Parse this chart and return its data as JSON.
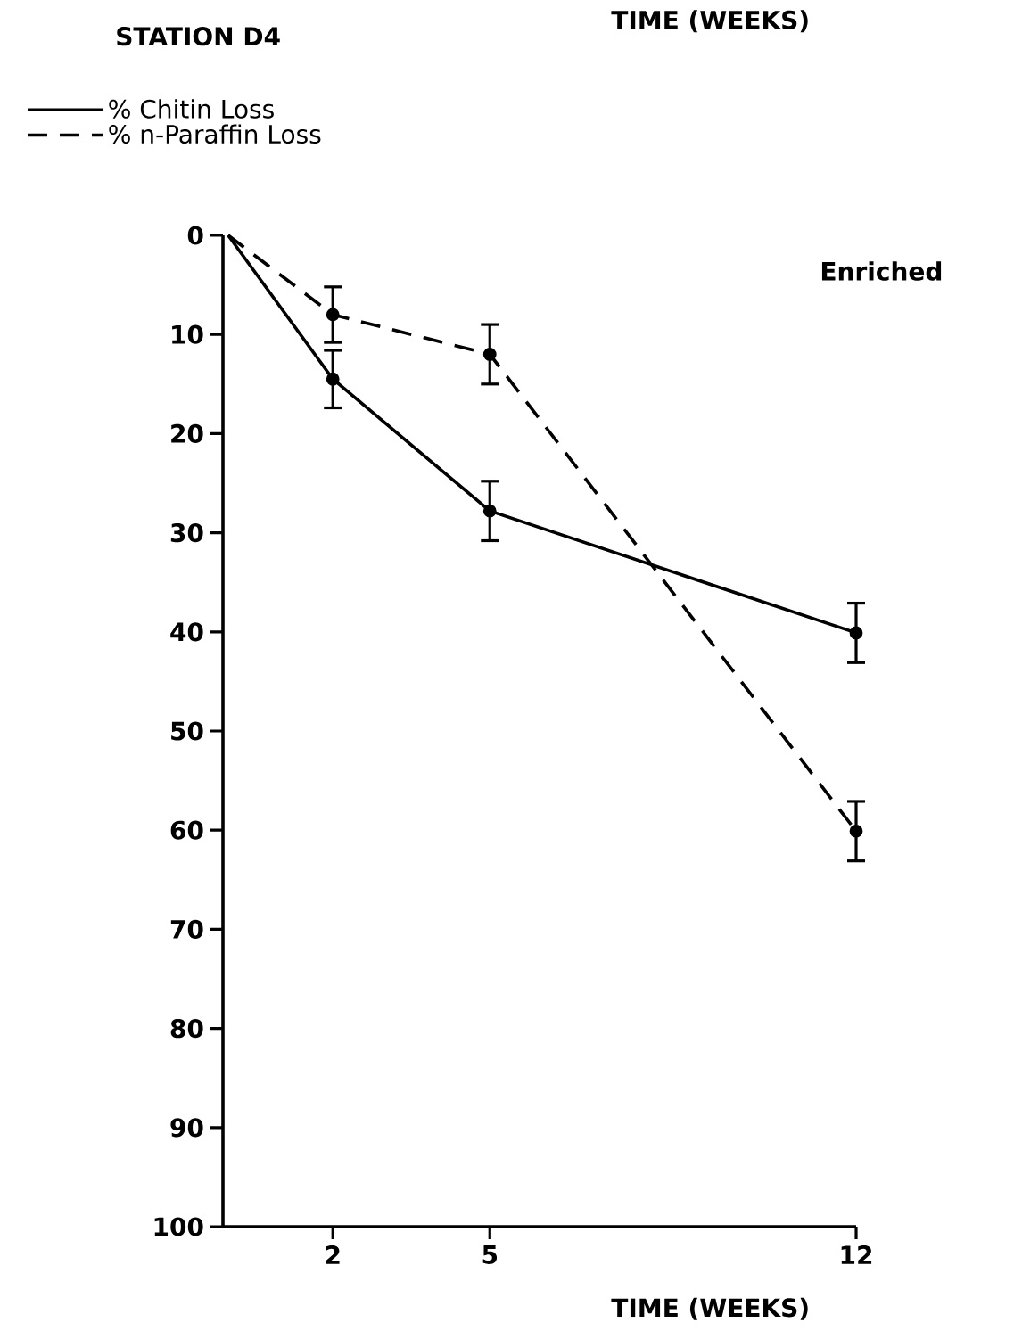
{
  "chart_data": {
    "type": "line",
    "title": "STATION D4",
    "xlabel": "TIME (WEEKS)",
    "annotations": [
      "TIME (WEEKS)",
      "Enriched"
    ],
    "x": [
      0,
      2,
      5,
      12
    ],
    "xlim": [
      -0.1,
      12
    ],
    "xticks": [
      2,
      5,
      12
    ],
    "ylim": [
      100,
      0
    ],
    "yticks": [
      0,
      10,
      20,
      30,
      40,
      50,
      60,
      70,
      80,
      90,
      100
    ],
    "series": [
      {
        "name": "% Chitin Loss",
        "color": "#000000",
        "line_style": "solid",
        "values": [
          0,
          14.5,
          27.8,
          40.1
        ],
        "errors": [
          null,
          2.9,
          3,
          3
        ]
      },
      {
        "name": "% n-Paraffin Loss",
        "color": "#000000",
        "line_style": "dashed",
        "values": [
          0,
          8.0,
          12.0,
          60.1
        ],
        "errors": [
          null,
          2.8,
          3,
          3
        ]
      }
    ],
    "legend": "top left",
    "marker": "circle",
    "grid": false
  }
}
